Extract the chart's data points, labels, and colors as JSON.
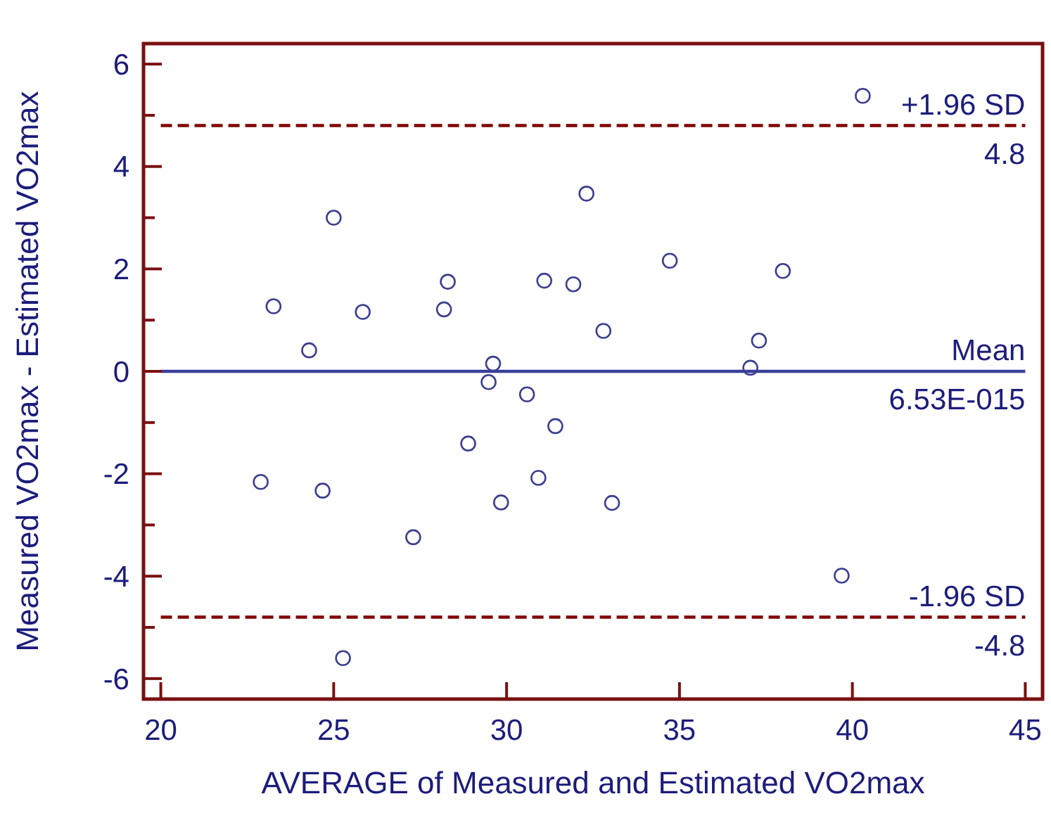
{
  "chart_data": {
    "type": "scatter",
    "xlabel": "AVERAGE of Measured and Estimated VO2max",
    "ylabel": "Measured VO2max - Estimated VO2max",
    "x": [
      23.26,
      25.0,
      24.29,
      25.84,
      28.3,
      28.19,
      29.61,
      31.09,
      31.93,
      32.31,
      34.72,
      37.99,
      32.8,
      37.3,
      37.05,
      40.3,
      29.48,
      30.59,
      31.41,
      28.89,
      22.89,
      24.68,
      30.92,
      29.84,
      27.3,
      25.27,
      33.05,
      39.69
    ],
    "series": [
      {
        "color": "#3c3f8f",
        "values": [
          1.27,
          3.0,
          0.41,
          1.16,
          1.75,
          1.21,
          0.15,
          1.77,
          1.7,
          3.47,
          2.16,
          1.96,
          0.79,
          0.6,
          0.07,
          5.38,
          -0.21,
          -0.45,
          -1.07,
          -1.41,
          -2.16,
          -2.33,
          -2.08,
          -2.56,
          -3.24,
          -5.6,
          -2.57,
          -3.99
        ]
      }
    ],
    "marker": "circle",
    "grid": false,
    "xlim": [
      19.5,
      45.5
    ],
    "xticks": [
      20,
      25,
      30,
      35,
      40,
      45
    ],
    "ylim": [
      -6.4,
      6.4
    ],
    "yticks": [
      -6,
      {
        "value": -5,
        "label": null
      },
      -4,
      {
        "value": -3,
        "label": null
      },
      -2,
      {
        "value": -1,
        "label": null
      },
      0,
      {
        "value": 1,
        "label": null
      },
      2,
      {
        "value": 3,
        "label": null
      },
      4,
      {
        "value": 5,
        "label": null
      },
      6
    ],
    "ref_lines": [
      {
        "axis": "y",
        "value": 4.8,
        "label": "+1.96 SD",
        "color": "#800000",
        "line_style": "dashed"
      },
      {
        "axis": "y",
        "value": 6.53e-15,
        "label": "Mean",
        "color": "#3a3f9a",
        "line_style": "solid"
      },
      {
        "axis": "y",
        "value": -4.8,
        "label": "-1.96 SD",
        "color": "#800000",
        "line_style": "dashed"
      }
    ],
    "annotations": [
      {
        "text": "4.8",
        "y": 4.8
      },
      {
        "text": "6.53E-015",
        "y": 6.53e-15
      },
      {
        "text": "-4.8",
        "y": -4.8
      }
    ]
  }
}
